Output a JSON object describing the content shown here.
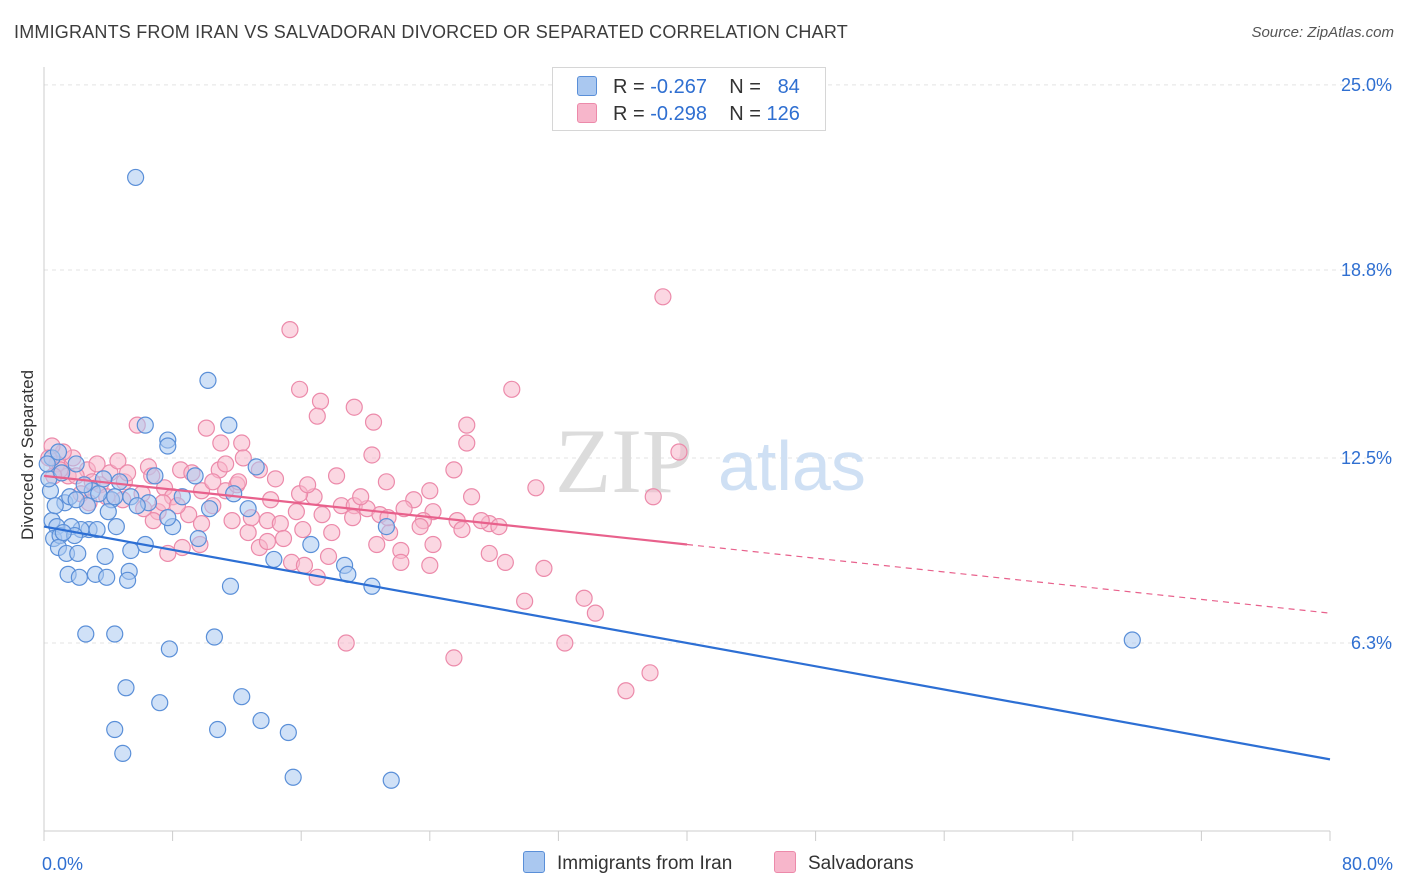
{
  "header": {
    "title": "IMMIGRANTS FROM IRAN VS SALVADORAN DIVORCED OR SEPARATED CORRELATION CHART",
    "source": "Source: ZipAtlas.com"
  },
  "watermark": {
    "zip": "ZIP",
    "atlas": "atlas"
  },
  "legend": {
    "rows": [
      {
        "r_label": "R =",
        "r_value": "-0.267",
        "n_label": "N =",
        "n_value": "84"
      },
      {
        "r_label": "R =",
        "r_value": "-0.298",
        "n_label": "N =",
        "n_value": "126"
      }
    ]
  },
  "bottom_legend": {
    "series1": "Immigrants from Iran",
    "series2": "Salvadorans"
  },
  "colors": {
    "series1_fill": "#aac8f0",
    "series1_stroke": "#5a8fd8",
    "series1_line": "#2d6fd4",
    "series2_fill": "#f7b6cb",
    "series2_stroke": "#ec8aaa",
    "series2_line": "#e8618c",
    "grid": "#e3e3e3",
    "tick_label": "#2f6fd1"
  },
  "chart_data": {
    "type": "scatter",
    "title": "IMMIGRANTS FROM IRAN VS SALVADORAN DIVORCED OR SEPARATED CORRELATION CHART",
    "xlabel": "",
    "ylabel": "Divorced or Separated",
    "xlim": [
      0,
      80
    ],
    "ylim": [
      0,
      25.6
    ],
    "x_tick_labels": [
      "0.0%",
      "80.0%"
    ],
    "y_ticks": [
      6.3,
      12.5,
      18.8,
      25.0
    ],
    "y_tick_labels": [
      "6.3%",
      "12.5%",
      "18.8%",
      "25.0%"
    ],
    "grid": "horizontal dashed",
    "legend_position": "top-center",
    "series": [
      {
        "name": "Immigrants from Iran",
        "R": -0.267,
        "N": 84,
        "trend": {
          "x": [
            0,
            80
          ],
          "y": [
            10.2,
            2.4
          ],
          "dashed_from": null
        },
        "points": [
          [
            5.7,
            21.9
          ],
          [
            10.2,
            15.1
          ],
          [
            7.7,
            13.1
          ],
          [
            11.5,
            13.6
          ],
          [
            6.3,
            13.6
          ],
          [
            7.7,
            12.9
          ],
          [
            13.2,
            12.2
          ],
          [
            2.0,
            12.3
          ],
          [
            0.4,
            11.4
          ],
          [
            1.3,
            11.0
          ],
          [
            0.5,
            10.4
          ],
          [
            3.0,
            11.4
          ],
          [
            2.8,
            10.1
          ],
          [
            2.3,
            10.1
          ],
          [
            1.7,
            10.2
          ],
          [
            0.8,
            10.2
          ],
          [
            0.6,
            9.8
          ],
          [
            1.0,
            9.9
          ],
          [
            1.9,
            9.9
          ],
          [
            3.3,
            10.1
          ],
          [
            4.5,
            10.2
          ],
          [
            0.9,
            9.5
          ],
          [
            1.4,
            9.3
          ],
          [
            2.1,
            9.3
          ],
          [
            3.8,
            9.2
          ],
          [
            5.4,
            9.4
          ],
          [
            5.3,
            8.7
          ],
          [
            3.2,
            8.6
          ],
          [
            1.5,
            8.6
          ],
          [
            2.2,
            8.5
          ],
          [
            3.9,
            8.5
          ],
          [
            5.2,
            8.4
          ],
          [
            8.0,
            10.2
          ],
          [
            9.6,
            9.8
          ],
          [
            5.4,
            11.2
          ],
          [
            4.2,
            11.1
          ],
          [
            3.4,
            11.3
          ],
          [
            4.7,
            11.7
          ],
          [
            6.9,
            11.9
          ],
          [
            9.4,
            11.9
          ],
          [
            11.8,
            11.3
          ],
          [
            7.7,
            10.5
          ],
          [
            12.7,
            10.8
          ],
          [
            10.3,
            10.8
          ],
          [
            6.3,
            9.6
          ],
          [
            4.4,
            11.2
          ],
          [
            4.0,
            10.7
          ],
          [
            2.7,
            10.9
          ],
          [
            14.3,
            9.1
          ],
          [
            16.6,
            9.6
          ],
          [
            18.7,
            8.9
          ],
          [
            18.9,
            8.6
          ],
          [
            20.4,
            8.2
          ],
          [
            21.3,
            10.2
          ],
          [
            11.6,
            8.2
          ],
          [
            2.6,
            6.6
          ],
          [
            4.4,
            6.6
          ],
          [
            7.8,
            6.1
          ],
          [
            10.6,
            6.5
          ],
          [
            5.1,
            4.8
          ],
          [
            7.2,
            4.3
          ],
          [
            12.3,
            4.5
          ],
          [
            4.4,
            3.4
          ],
          [
            10.8,
            3.4
          ],
          [
            13.5,
            3.7
          ],
          [
            15.2,
            3.3
          ],
          [
            4.9,
            2.6
          ],
          [
            15.5,
            1.8
          ],
          [
            21.6,
            1.7
          ],
          [
            67.7,
            6.4
          ],
          [
            0.3,
            11.8
          ],
          [
            0.5,
            12.5
          ],
          [
            1.1,
            12.0
          ],
          [
            0.9,
            12.7
          ],
          [
            1.6,
            11.2
          ],
          [
            2.5,
            11.6
          ],
          [
            6.5,
            11.0
          ],
          [
            8.6,
            11.2
          ],
          [
            3.7,
            11.8
          ],
          [
            1.2,
            10.0
          ],
          [
            0.7,
            10.9
          ],
          [
            2.0,
            11.1
          ],
          [
            5.8,
            10.9
          ],
          [
            0.2,
            12.3
          ]
        ]
      },
      {
        "name": "Salvadorans",
        "R": -0.298,
        "N": 126,
        "trend": {
          "x": [
            0,
            80
          ],
          "y": [
            11.9,
            7.3
          ],
          "dashed_from": 40
        },
        "points": [
          [
            38.5,
            17.9
          ],
          [
            15.3,
            16.8
          ],
          [
            29.1,
            14.8
          ],
          [
            15.9,
            14.8
          ],
          [
            17.2,
            14.4
          ],
          [
            19.3,
            14.2
          ],
          [
            17.0,
            13.9
          ],
          [
            20.5,
            13.7
          ],
          [
            26.3,
            13.6
          ],
          [
            26.3,
            13.0
          ],
          [
            10.1,
            13.5
          ],
          [
            5.8,
            13.6
          ],
          [
            11.0,
            13.0
          ],
          [
            12.3,
            13.0
          ],
          [
            39.5,
            12.7
          ],
          [
            20.4,
            12.6
          ],
          [
            12.4,
            12.5
          ],
          [
            6.5,
            12.2
          ],
          [
            8.5,
            12.1
          ],
          [
            10.9,
            12.1
          ],
          [
            13.4,
            12.1
          ],
          [
            25.5,
            12.1
          ],
          [
            21.3,
            11.7
          ],
          [
            30.6,
            11.5
          ],
          [
            24.0,
            11.4
          ],
          [
            11.3,
            11.4
          ],
          [
            9.8,
            11.4
          ],
          [
            12.0,
            11.6
          ],
          [
            14.1,
            11.1
          ],
          [
            16.8,
            11.2
          ],
          [
            15.9,
            11.3
          ],
          [
            23.0,
            11.1
          ],
          [
            26.6,
            11.2
          ],
          [
            37.9,
            11.2
          ],
          [
            18.5,
            10.9
          ],
          [
            19.3,
            10.9
          ],
          [
            20.1,
            10.8
          ],
          [
            20.9,
            10.6
          ],
          [
            22.4,
            10.8
          ],
          [
            24.2,
            10.7
          ],
          [
            25.7,
            10.4
          ],
          [
            27.7,
            10.3
          ],
          [
            28.3,
            10.2
          ],
          [
            19.2,
            10.5
          ],
          [
            13.9,
            10.4
          ],
          [
            14.7,
            10.3
          ],
          [
            16.1,
            10.1
          ],
          [
            17.3,
            10.6
          ],
          [
            21.5,
            10.0
          ],
          [
            23.6,
            10.4
          ],
          [
            20.7,
            9.6
          ],
          [
            22.2,
            9.4
          ],
          [
            24.2,
            9.6
          ],
          [
            17.7,
            9.2
          ],
          [
            15.4,
            9.0
          ],
          [
            16.2,
            8.9
          ],
          [
            13.4,
            9.5
          ],
          [
            12.7,
            10.0
          ],
          [
            9.7,
            9.6
          ],
          [
            8.6,
            9.5
          ],
          [
            7.7,
            9.3
          ],
          [
            22.2,
            9.0
          ],
          [
            24.0,
            8.9
          ],
          [
            28.7,
            9.0
          ],
          [
            31.1,
            8.8
          ],
          [
            17.0,
            8.5
          ],
          [
            29.9,
            7.7
          ],
          [
            33.6,
            7.8
          ],
          [
            34.3,
            7.3
          ],
          [
            32.4,
            6.3
          ],
          [
            18.8,
            6.3
          ],
          [
            25.5,
            5.8
          ],
          [
            37.7,
            5.3
          ],
          [
            36.2,
            4.7
          ],
          [
            6.7,
            11.9
          ],
          [
            7.5,
            11.5
          ],
          [
            5.0,
            11.7
          ],
          [
            4.1,
            12.0
          ],
          [
            3.5,
            11.6
          ],
          [
            2.7,
            12.1
          ],
          [
            1.8,
            12.5
          ],
          [
            1.2,
            12.7
          ],
          [
            0.8,
            12.3
          ],
          [
            0.5,
            12.9
          ],
          [
            0.3,
            12.5
          ],
          [
            1.5,
            11.9
          ],
          [
            2.3,
            11.3
          ],
          [
            3.0,
            11.7
          ],
          [
            4.6,
            12.4
          ],
          [
            5.2,
            12.0
          ],
          [
            6.1,
            11.3
          ],
          [
            7.1,
            10.7
          ],
          [
            8.0,
            11.2
          ],
          [
            9.0,
            10.6
          ],
          [
            9.8,
            10.3
          ],
          [
            10.5,
            10.9
          ],
          [
            11.7,
            10.4
          ],
          [
            12.9,
            10.5
          ],
          [
            13.9,
            9.7
          ],
          [
            14.9,
            9.8
          ],
          [
            3.9,
            11.2
          ],
          [
            1.0,
            12.1
          ],
          [
            6.8,
            10.4
          ],
          [
            7.4,
            11.0
          ],
          [
            10.5,
            11.7
          ],
          [
            11.3,
            12.3
          ],
          [
            14.4,
            11.8
          ],
          [
            16.4,
            11.6
          ],
          [
            18.2,
            11.9
          ],
          [
            19.7,
            11.2
          ],
          [
            21.4,
            10.5
          ],
          [
            26.0,
            10.1
          ],
          [
            27.2,
            10.4
          ],
          [
            2.8,
            11.0
          ],
          [
            4.9,
            11.1
          ],
          [
            8.3,
            10.9
          ],
          [
            12.1,
            11.7
          ],
          [
            15.7,
            10.7
          ],
          [
            0.6,
            11.9
          ],
          [
            6.2,
            10.8
          ],
          [
            9.2,
            12.0
          ],
          [
            3.3,
            12.3
          ],
          [
            17.9,
            10.0
          ],
          [
            23.4,
            10.2
          ],
          [
            27.7,
            9.3
          ],
          [
            2.0,
            11.9
          ]
        ]
      }
    ]
  }
}
